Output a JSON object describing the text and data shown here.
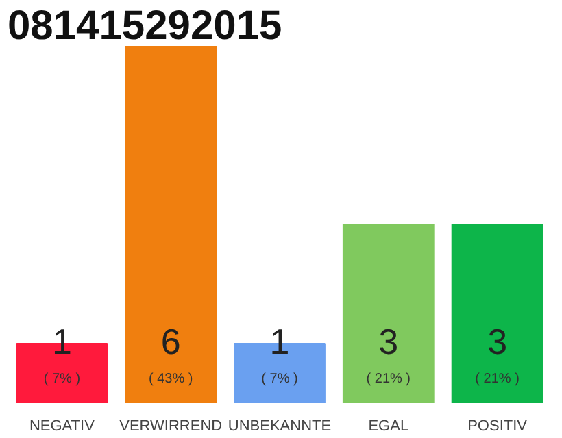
{
  "chart_data": {
    "type": "bar",
    "title": "081415292015",
    "categories": [
      "NEGATIV",
      "VERWIRREND",
      "UNBEKANNTE",
      "EGAL",
      "POSITIV"
    ],
    "values": [
      1,
      6,
      1,
      3,
      3
    ],
    "colors": [
      "#ff1a3c",
      "#f07f0f",
      "#6aa0f0",
      "#80c95e",
      "#0db54a"
    ],
    "ylim": [
      0,
      6
    ],
    "tick_labels": "x",
    "grid": false,
    "data_labels": true,
    "annotations": [
      "( 7% )",
      "( 43% )",
      "( 7% )",
      "( 21% )",
      "( 21% )"
    ]
  }
}
